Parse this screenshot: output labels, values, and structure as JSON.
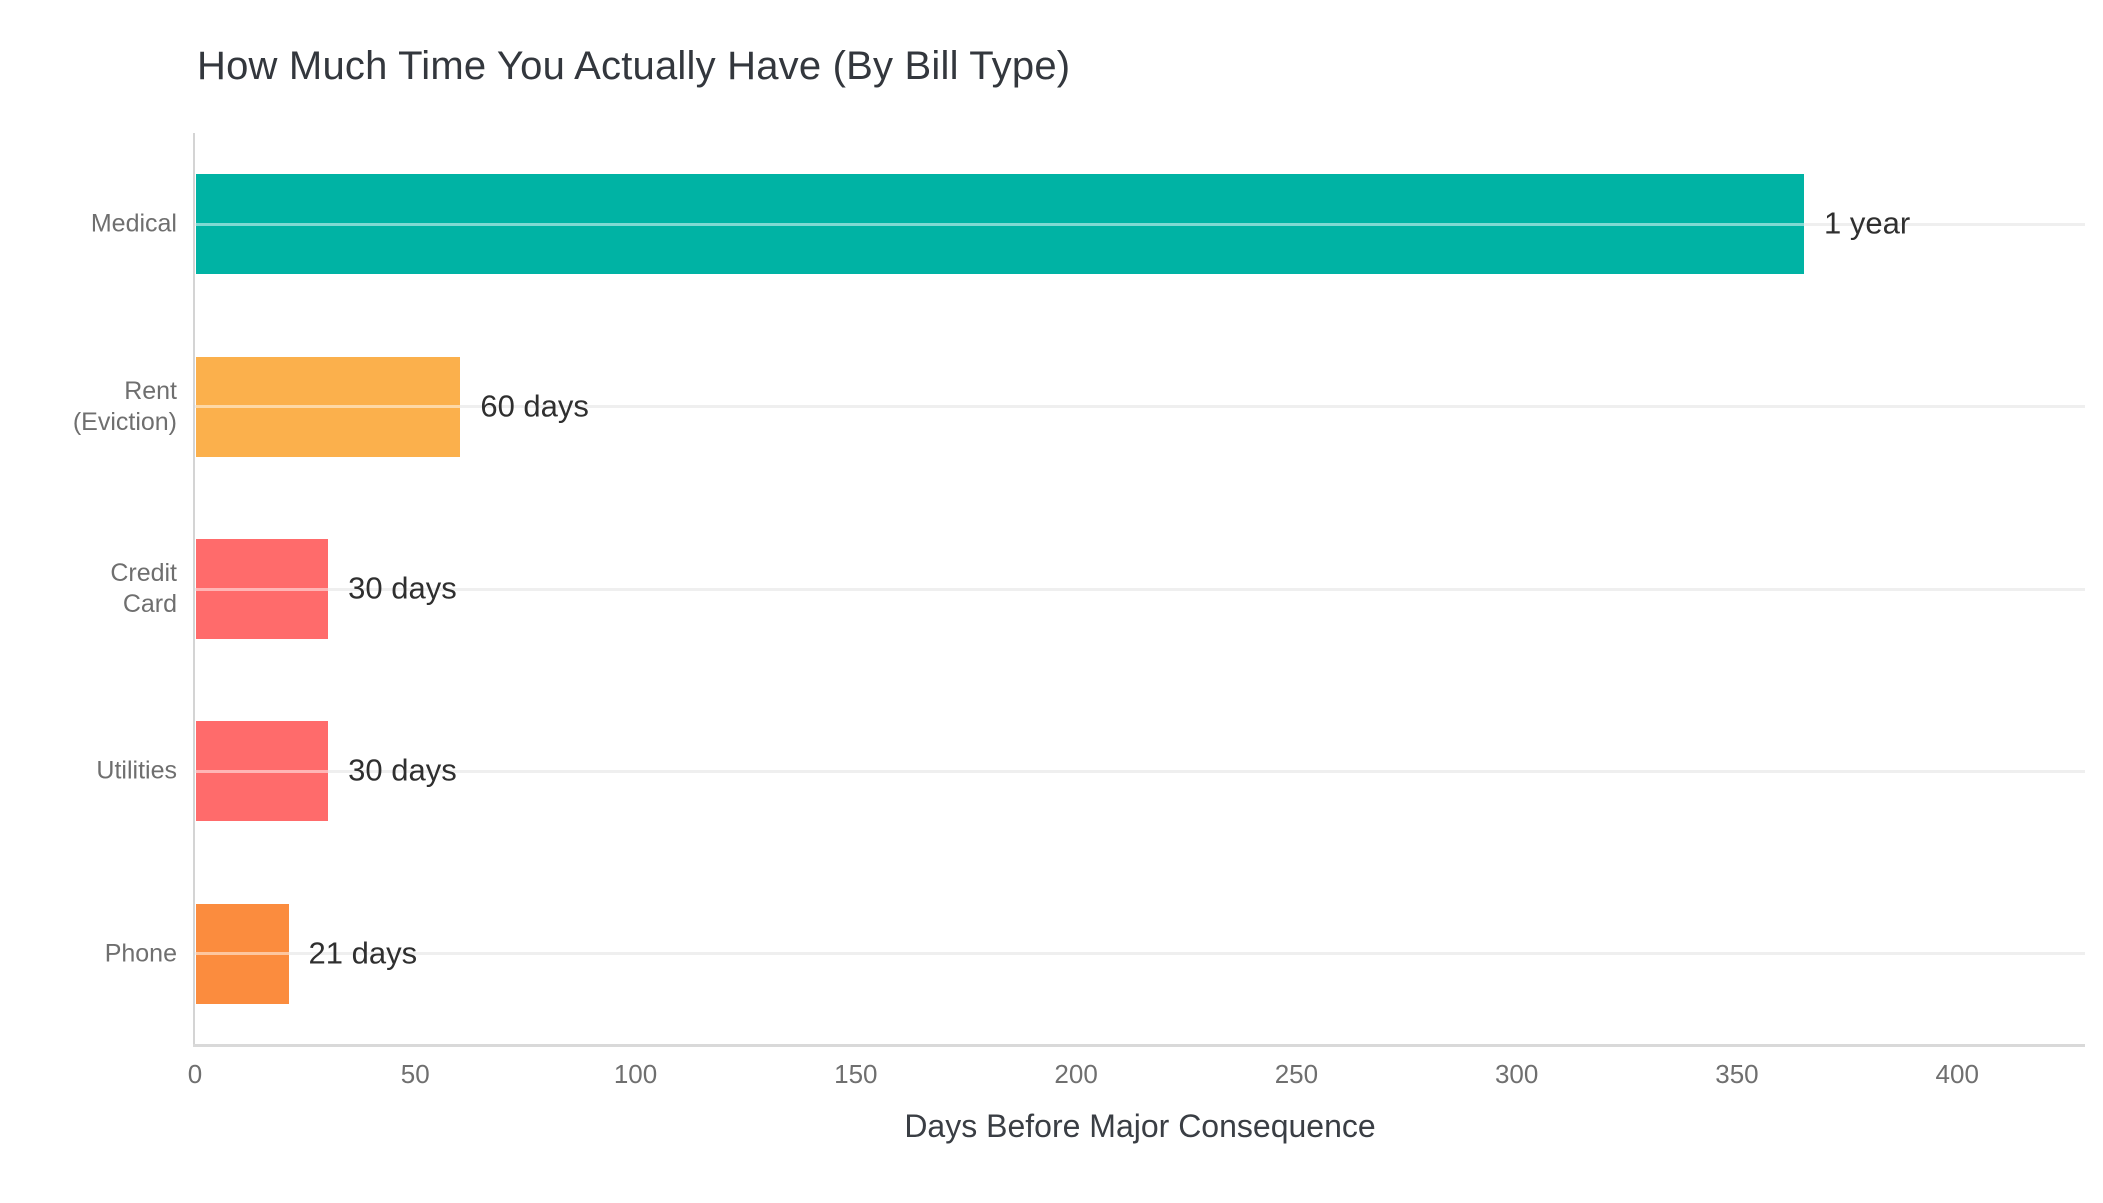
{
  "page": {
    "background": "#ffffff"
  },
  "chart_data": {
    "type": "bar",
    "orientation": "horizontal",
    "title": "How Much Time You Actually Have (By Bill Type)",
    "xlabel": "Days Before Major Consequence",
    "ylabel": "",
    "categories": [
      "Medical",
      "Rent\n(Eviction)",
      "Credit\nCard",
      "Utilities",
      "Phone"
    ],
    "values": [
      365,
      60,
      30,
      30,
      21
    ],
    "value_labels": [
      "1 year",
      "60 days",
      "30 days",
      "30 days",
      "21 days"
    ],
    "bar_colors": [
      "#00B3A4",
      "#FBB04C",
      "#FF6B6B",
      "#FF6B6B",
      "#FB8C3E"
    ],
    "xlim": [
      0,
      429
    ],
    "xticks": [
      "0",
      "50",
      "100",
      "150",
      "200",
      "250",
      "300",
      "350",
      "400"
    ],
    "grid": "horizontal",
    "legend": "none",
    "colors": {
      "axis_line": "#d6d6d6",
      "gridline": "#efefef",
      "title_text": "#33373d",
      "axis_title_text": "#3a3e44",
      "tick_text": "#6f6f6f",
      "category_text": "#6f6f6f",
      "value_label_text": "#2f2f2f"
    }
  }
}
